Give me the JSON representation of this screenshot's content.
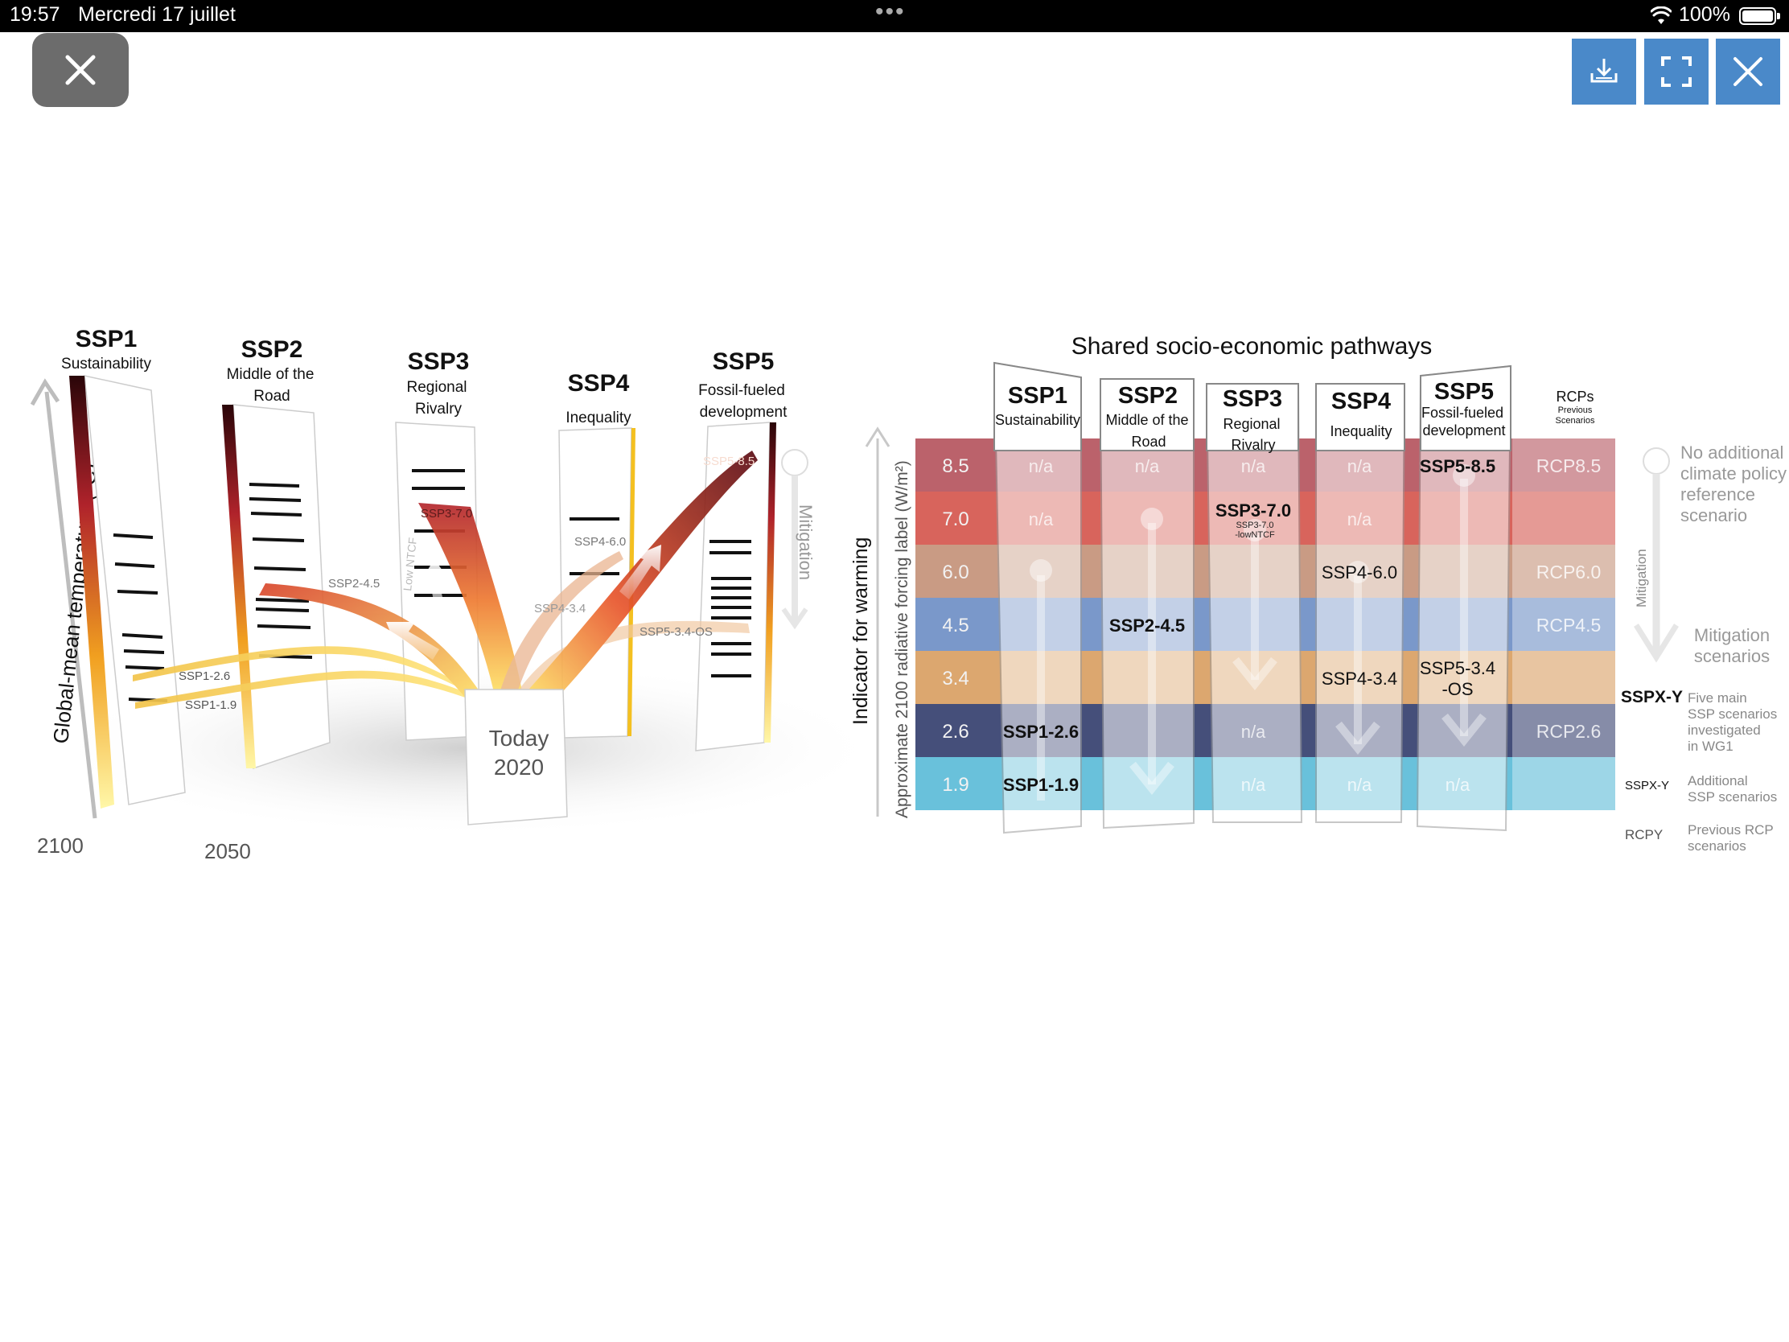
{
  "status_bar": {
    "time": "19:57",
    "date": "Mercredi 17 juillet",
    "more": "•••",
    "battery": "100%",
    "battery_level": 1.0
  },
  "toolbar": {
    "close_left_icon": "close-icon",
    "download_icon": "download-icon",
    "fullscreen_icon": "fullscreen-icon",
    "close_right_icon": "close-icon"
  },
  "left_panel": {
    "ssps": [
      {
        "name": "SSP1",
        "subtitle": [
          "Sustainability"
        ]
      },
      {
        "name": "SSP2",
        "subtitle": [
          "Middle of the",
          "Road"
        ]
      },
      {
        "name": "SSP3",
        "subtitle": [
          "Regional",
          "Rivalry"
        ]
      },
      {
        "name": "SSP4",
        "subtitle": [
          "Inequality"
        ]
      },
      {
        "name": "SSP5",
        "subtitle": [
          "Fossil-fueled",
          "development"
        ]
      }
    ],
    "y_axis_label": "Global-mean temperature (°C)",
    "year_2100": "2100",
    "year_2050": "2050",
    "today_label": "Today",
    "today_year": "2020",
    "mitigation_label": "Mitigation",
    "low_ntcf": "Low NTCF",
    "scenario_labels": [
      "SSP5-8.5",
      "SSP3-7.0",
      "SSP4-6.0",
      "SSP2-4.5",
      "SSP4-3.4",
      "SSP5-3.4-OS",
      "SSP1-2.6",
      "SSP1-1.9"
    ]
  },
  "right_panel": {
    "title": "Shared socio-economic pathways",
    "y_label_1": "Indicator for warming",
    "y_label_2": "Approximate 2100 radiative forcing label (W/m²)",
    "columns": [
      {
        "name": "SSP1",
        "subtitle": [
          "Sustainability"
        ]
      },
      {
        "name": "SSP2",
        "subtitle": [
          "Middle of the",
          "Road"
        ]
      },
      {
        "name": "SSP3",
        "subtitle": [
          "Regional",
          "Rivalry"
        ]
      },
      {
        "name": "SSP4",
        "subtitle": [
          "Inequality"
        ]
      },
      {
        "name": "SSP5",
        "subtitle": [
          "Fossil-fueled",
          "development"
        ]
      }
    ],
    "rcp_header": "RCPs",
    "rcp_header_sub": [
      "Previous",
      "Scenarios"
    ],
    "rows": [
      {
        "level": "8.5",
        "color": "#b5555e",
        "cells": [
          "n/a",
          "n/a",
          "n/a",
          "n/a",
          "SSP5-8.5"
        ],
        "rcp": "RCP8.5"
      },
      {
        "level": "7.0",
        "color": "#d5574e",
        "cells": [
          "n/a",
          "",
          "SSP3-7.0",
          "n/a",
          ""
        ],
        "rcp": ""
      },
      {
        "level": "6.0",
        "color": "#c4937a",
        "cells": [
          "",
          "",
          "",
          "SSP4-6.0",
          ""
        ],
        "rcp": "RCP6.0"
      },
      {
        "level": "4.5",
        "color": "#6f8fc6",
        "cells": [
          "",
          "SSP2-4.5",
          "",
          "",
          ""
        ],
        "rcp": "RCP4.5"
      },
      {
        "level": "3.4",
        "color": "#d9a063",
        "cells": [
          "",
          "",
          "",
          "SSP4-3.4",
          "SSP5-3.4 -OS"
        ],
        "rcp": ""
      },
      {
        "level": "2.6",
        "color": "#35406f",
        "cells": [
          "SSP1-2.6",
          "",
          "n/a",
          "",
          ""
        ],
        "rcp": "RCP2.6"
      },
      {
        "level": "1.9",
        "color": "#5cbcd8",
        "cells": [
          "SSP1-1.9",
          "",
          "n/a",
          "n/a",
          "n/a"
        ],
        "rcp": ""
      }
    ],
    "ssp3_sub": [
      "SSP3-7.0",
      "-lowNTCF"
    ],
    "legend": {
      "no_additional": [
        "No additional",
        "climate policy",
        "reference",
        "scenario"
      ],
      "mitigation_vertical": "Mitigation",
      "mitigation_scenarios": [
        "Mitigation",
        "scenarios"
      ],
      "key1": "SSPX-Y",
      "key1_desc": [
        "Five main",
        "SSP scenarios",
        "investigated",
        "in WG1"
      ],
      "key2": "SSPX-Y",
      "key2_desc": [
        "Additional",
        "SSP scenarios"
      ],
      "key3": "RCPY",
      "key3_desc": [
        "Previous RCP",
        "scenarios"
      ]
    }
  }
}
